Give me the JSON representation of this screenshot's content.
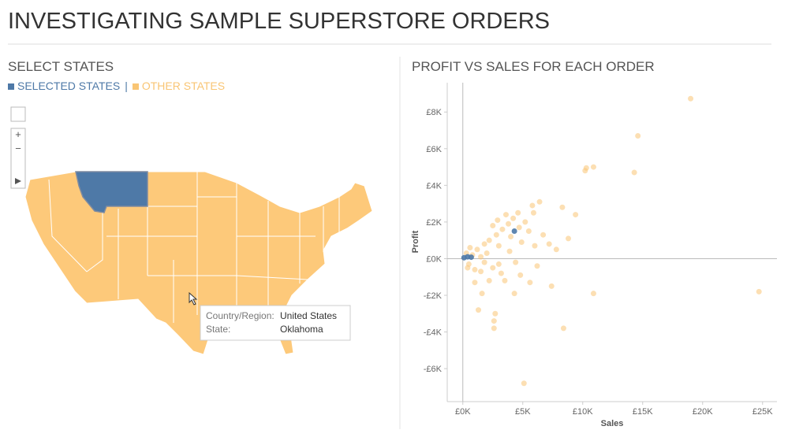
{
  "header": {
    "title": "INVESTIGATING SAMPLE SUPERSTORE ORDERS"
  },
  "map": {
    "title": "SELECT STATES",
    "legend_separator": "|"
  },
  "tooltip": {
    "rows": [
      [
        "Country/Region:",
        "United States"
      ],
      [
        "State:",
        "Oklahoma"
      ]
    ]
  },
  "chart_data": {
    "type": "scatter",
    "title": "PROFIT VS SALES FOR EACH ORDER",
    "x_label": "Sales",
    "y_label": "Profit",
    "xlim": [
      -1300,
      26200
    ],
    "ylim": [
      -7800,
      9600
    ],
    "xticks": [
      {
        "value": 0,
        "label": "£0K"
      },
      {
        "value": 5000,
        "label": "£5K"
      },
      {
        "value": 10000,
        "label": "£10K"
      },
      {
        "value": 15000,
        "label": "£15K"
      },
      {
        "value": 20000,
        "label": "£20K"
      },
      {
        "value": 25000,
        "label": "£25K"
      }
    ],
    "yticks": [
      {
        "value": -6000,
        "label": "-£6K"
      },
      {
        "value": -4000,
        "label": "-£4K"
      },
      {
        "value": -2000,
        "label": "-£2K"
      },
      {
        "value": 0,
        "label": "£0K"
      },
      {
        "value": 2000,
        "label": "£2K"
      },
      {
        "value": 4000,
        "label": "£4K"
      },
      {
        "value": 6000,
        "label": "£6K"
      },
      {
        "value": 8000,
        "label": "£8K"
      }
    ],
    "series": [
      {
        "name": "SELECTED STATES",
        "color": "#4e79a7",
        "x": [
          100,
          400,
          700,
          4300
        ],
        "values": [
          50,
          100,
          80,
          1500
        ]
      },
      {
        "name": "OTHER STATES",
        "color": "#f9c574",
        "x": [
          19000,
          14600,
          14300,
          10900,
          10200,
          10300,
          8300,
          9400,
          8800,
          6400,
          5900,
          7800,
          7200,
          6700,
          24700,
          10900,
          8400,
          5100,
          2600,
          2600,
          2700,
          1300,
          1600,
          4300,
          3500,
          4800,
          2500,
          3000,
          1500,
          1000,
          500,
          800,
          1200,
          1800,
          2200,
          2800,
          3300,
          3800,
          4200,
          4600,
          5200,
          5500,
          4000,
          3000,
          2000,
          1500,
          600,
          2500,
          3600,
          4900,
          6000,
          3200,
          2200,
          1000,
          400,
          300,
          1800,
          3900,
          4400,
          5600,
          7400,
          6200,
          5800,
          4700,
          2900
        ],
        "values": [
          8730,
          6700,
          4700,
          5000,
          4800,
          4950,
          2800,
          2400,
          1100,
          3100,
          2500,
          500,
          800,
          1300,
          -1800,
          -1900,
          -3800,
          -6800,
          -3400,
          -3800,
          -3000,
          -2800,
          -1900,
          -1900,
          -1200,
          -900,
          -500,
          -300,
          -700,
          -600,
          -300,
          200,
          500,
          800,
          1000,
          1300,
          1600,
          1900,
          2200,
          2500,
          2000,
          1500,
          1200,
          700,
          300,
          100,
          600,
          1800,
          2400,
          900,
          700,
          -800,
          -1200,
          -1300,
          -500,
          300,
          -200,
          400,
          -200,
          -1300,
          -1500,
          -400,
          2900,
          1700,
          2100
        ]
      }
    ]
  }
}
